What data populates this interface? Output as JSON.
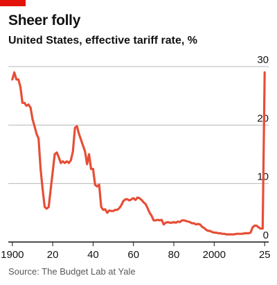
{
  "header": {
    "title": "Sheer folly",
    "subtitle": "United States, effective tariff rate, %"
  },
  "footer": {
    "source": "Source: The Budget Lab at Yale"
  },
  "colors": {
    "brand": "#E3120B",
    "line": "#E64E36",
    "gridline": "#B7B7B7",
    "baseline": "#121212"
  },
  "chart_data": {
    "type": "line",
    "title": "Sheer folly",
    "subtitle": "United States, effective tariff rate, %",
    "xlabel": "",
    "ylabel": "",
    "xlim": [
      1898,
      2027
    ],
    "ylim": [
      0,
      30
    ],
    "y_axis_side": "right",
    "grid": true,
    "legend": "none",
    "x_ticks": [
      {
        "value": 1900,
        "label": "1900"
      },
      {
        "value": 1920,
        "label": "20"
      },
      {
        "value": 1940,
        "label": "40"
      },
      {
        "value": 1960,
        "label": "60"
      },
      {
        "value": 1980,
        "label": "80"
      },
      {
        "value": 2000,
        "label": "2000"
      },
      {
        "value": 2025,
        "label": "25"
      }
    ],
    "y_ticks": [
      {
        "value": 0,
        "label": "0"
      },
      {
        "value": 10,
        "label": "10"
      },
      {
        "value": 20,
        "label": "20"
      },
      {
        "value": 30,
        "label": "30"
      }
    ],
    "series": [
      {
        "x": [
          1900,
          1901,
          1902,
          1903,
          1904,
          1905,
          1906,
          1907,
          1908,
          1909,
          1910,
          1911,
          1912,
          1913,
          1914,
          1915,
          1916,
          1917,
          1918,
          1919,
          1920,
          1921,
          1922,
          1923,
          1924,
          1925,
          1926,
          1927,
          1928,
          1929,
          1930,
          1931,
          1932,
          1933,
          1934,
          1935,
          1936,
          1937,
          1938,
          1939,
          1940,
          1941,
          1942,
          1943,
          1944,
          1945,
          1946,
          1947,
          1948,
          1949,
          1950,
          1951,
          1952,
          1953,
          1954,
          1955,
          1956,
          1957,
          1958,
          1959,
          1960,
          1961,
          1962,
          1963,
          1964,
          1965,
          1966,
          1967,
          1968,
          1969,
          1970,
          1971,
          1972,
          1973,
          1974,
          1975,
          1976,
          1977,
          1978,
          1979,
          1980,
          1981,
          1982,
          1983,
          1984,
          1985,
          1986,
          1987,
          1988,
          1989,
          1990,
          1991,
          1992,
          1993,
          1994,
          1995,
          1996,
          1997,
          1998,
          1999,
          2000,
          2001,
          2002,
          2003,
          2004,
          2005,
          2006,
          2007,
          2008,
          2009,
          2010,
          2011,
          2012,
          2013,
          2014,
          2015,
          2016,
          2017,
          2018,
          2019,
          2020,
          2021,
          2022,
          2023,
          2024,
          2025
        ],
        "values": [
          27.8,
          29.0,
          27.8,
          27.8,
          26.5,
          23.8,
          23.8,
          23.3,
          23.5,
          23.0,
          21.0,
          19.8,
          18.5,
          17.7,
          12.5,
          9.0,
          6.0,
          5.7,
          6.0,
          9.0,
          12.0,
          15.0,
          15.3,
          14.5,
          13.5,
          13.8,
          13.5,
          13.8,
          13.5,
          14.0,
          15.5,
          19.5,
          19.8,
          18.5,
          17.5,
          16.5,
          15.5,
          13.3,
          15.0,
          12.5,
          12.5,
          9.8,
          9.5,
          9.8,
          6.0,
          5.5,
          5.6,
          5.0,
          5.4,
          5.3,
          5.3,
          5.5,
          5.5,
          5.8,
          6.3,
          7.0,
          7.3,
          7.3,
          7.1,
          7.3,
          7.5,
          7.2,
          7.6,
          7.5,
          7.2,
          6.8,
          6.5,
          5.8,
          5.0,
          4.5,
          3.7,
          3.7,
          3.8,
          3.7,
          3.8,
          3.0,
          3.3,
          3.4,
          3.3,
          3.3,
          3.4,
          3.3,
          3.5,
          3.4,
          3.7,
          3.7,
          3.6,
          3.5,
          3.4,
          3.2,
          3.2,
          3.0,
          3.1,
          3.0,
          2.6,
          2.4,
          2.1,
          1.9,
          1.9,
          1.7,
          1.6,
          1.6,
          1.5,
          1.5,
          1.4,
          1.4,
          1.3,
          1.3,
          1.3,
          1.3,
          1.3,
          1.4,
          1.4,
          1.4,
          1.4,
          1.5,
          1.5,
          1.5,
          1.6,
          2.5,
          2.8,
          2.8,
          2.5,
          2.3,
          2.3,
          29.0
        ]
      }
    ]
  }
}
